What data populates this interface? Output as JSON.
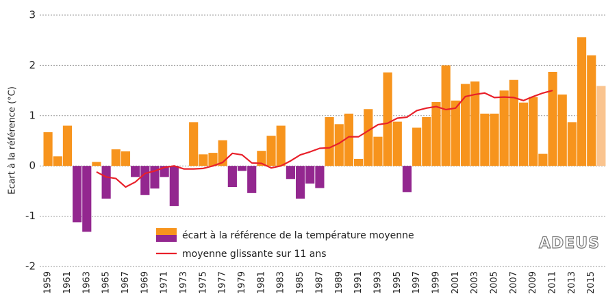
{
  "chart_data": {
    "type": "bar",
    "y_label": "Ecart à la référence (°C)",
    "logo": "ADEUS",
    "categories": [
      "1959",
      null,
      "1961",
      null,
      "1963",
      null,
      "1965",
      null,
      "1967",
      null,
      "1969",
      null,
      "1971",
      null,
      "1973",
      null,
      "1975",
      null,
      "1977",
      null,
      "1979",
      null,
      "1981",
      null,
      "1983",
      null,
      "1985",
      null,
      "1987",
      null,
      "1989",
      null,
      "1991",
      null,
      "1993",
      null,
      "1995",
      null,
      "1997",
      null,
      "1999",
      null,
      "2001",
      null,
      "2003",
      null,
      "2005",
      null,
      "2007",
      null,
      "2009",
      null,
      "2011",
      null,
      "2013",
      null,
      "2015",
      null
    ],
    "series": [
      {
        "name": "écart à la référence de la température moyenne",
        "type": "bar",
        "color": "#f7941d",
        "negative_color": "#93278f",
        "last_color": "#fac48f",
        "values": [
          0.67,
          0.19,
          0.8,
          -1.12,
          -1.31,
          0.08,
          -0.65,
          0.33,
          0.29,
          -0.22,
          -0.58,
          -0.45,
          -0.22,
          -0.8,
          0.0,
          0.87,
          0.23,
          0.26,
          0.51,
          -0.42,
          -0.1,
          -0.54,
          0.3,
          0.6,
          0.8,
          -0.26,
          -0.65,
          -0.35,
          -0.44,
          0.97,
          0.83,
          1.04,
          0.14,
          1.13,
          0.58,
          1.86,
          0.88,
          -0.52,
          0.76,
          0.97,
          1.27,
          2.0,
          1.3,
          1.63,
          1.68,
          1.04,
          1.04,
          1.5,
          1.71,
          1.26,
          1.37,
          0.24,
          1.87,
          1.42,
          0.87,
          2.56,
          2.2,
          1.59
        ]
      },
      {
        "name": "moyenne glissante sur 11 ans",
        "type": "line",
        "color": "#e8202a",
        "values": [
          null,
          null,
          null,
          null,
          null,
          -0.12,
          -0.22,
          -0.25,
          -0.42,
          -0.32,
          -0.15,
          -0.1,
          -0.03,
          0.0,
          -0.06,
          -0.06,
          -0.05,
          0.0,
          0.07,
          0.25,
          0.22,
          0.06,
          0.05,
          -0.04,
          0.0,
          0.1,
          0.22,
          0.28,
          0.35,
          0.36,
          0.45,
          0.58,
          0.58,
          0.7,
          0.82,
          0.85,
          0.95,
          0.97,
          1.1,
          1.15,
          1.18,
          1.12,
          1.15,
          1.38,
          1.42,
          1.45,
          1.36,
          1.37,
          1.36,
          1.3,
          1.38,
          1.45,
          1.5,
          null,
          null,
          null,
          null,
          null
        ]
      }
    ],
    "ylim": [
      -2,
      3
    ],
    "yticks": [
      -2,
      -1,
      0,
      1,
      2,
      3
    ],
    "grid": true
  }
}
